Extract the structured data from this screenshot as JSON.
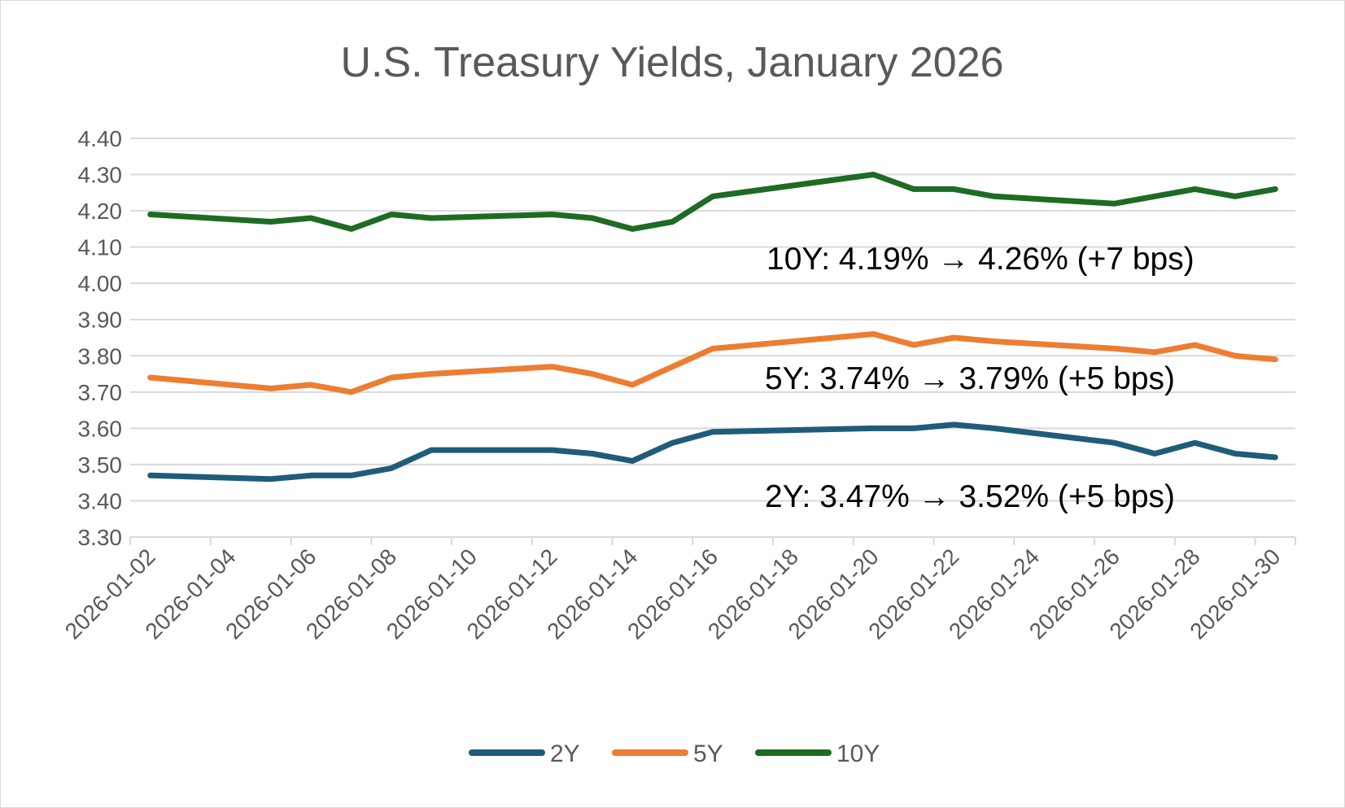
{
  "chart_data": {
    "type": "line",
    "title": "U.S. Treasury Yields, January 2026",
    "xlabel": "",
    "ylabel": "",
    "ylim": [
      3.3,
      4.4
    ],
    "yticks": [
      "4.40",
      "4.30",
      "4.20",
      "4.10",
      "4.00",
      "3.90",
      "3.80",
      "3.70",
      "3.60",
      "3.50",
      "3.40",
      "3.30"
    ],
    "x_range": [
      "2026-01-02",
      "2026-01-31"
    ],
    "xticks": [
      "2026-01-02",
      "2026-01-04",
      "2026-01-06",
      "2026-01-08",
      "2026-01-10",
      "2026-01-12",
      "2026-01-14",
      "2026-01-16",
      "2026-01-18",
      "2026-01-20",
      "2026-01-22",
      "2026-01-24",
      "2026-01-26",
      "2026-01-28",
      "2026-01-30"
    ],
    "grid": true,
    "legend_position": "bottom",
    "x": [
      "2026-01-02",
      "2026-01-05",
      "2026-01-06",
      "2026-01-07",
      "2026-01-08",
      "2026-01-09",
      "2026-01-12",
      "2026-01-13",
      "2026-01-14",
      "2026-01-15",
      "2026-01-16",
      "2026-01-20",
      "2026-01-21",
      "2026-01-22",
      "2026-01-23",
      "2026-01-26",
      "2026-01-27",
      "2026-01-28",
      "2026-01-29",
      "2026-01-30"
    ],
    "series": [
      {
        "name": "2Y",
        "color": "#1f5c7a",
        "values": [
          3.47,
          3.46,
          3.47,
          3.47,
          3.49,
          3.54,
          3.54,
          3.53,
          3.51,
          3.56,
          3.59,
          3.6,
          3.6,
          3.61,
          3.6,
          3.56,
          3.53,
          3.56,
          3.53,
          3.52
        ]
      },
      {
        "name": "5Y",
        "color": "#ed7d31",
        "values": [
          3.74,
          3.71,
          3.72,
          3.7,
          3.74,
          3.75,
          3.77,
          3.75,
          3.72,
          3.77,
          3.82,
          3.86,
          3.83,
          3.85,
          3.84,
          3.82,
          3.81,
          3.83,
          3.8,
          3.79
        ]
      },
      {
        "name": "10Y",
        "color": "#1e6b24",
        "values": [
          4.19,
          4.17,
          4.18,
          4.15,
          4.19,
          4.18,
          4.19,
          4.18,
          4.15,
          4.17,
          4.24,
          4.3,
          4.26,
          4.26,
          4.24,
          4.22,
          4.24,
          4.26,
          4.24,
          4.26
        ]
      }
    ],
    "annotations": [
      "10Y: 4.19% → 4.26% (+7 bps)",
      "5Y: 3.74% → 3.79% (+5 bps)",
      "2Y: 3.47% → 3.52% (+5 bps)"
    ]
  }
}
